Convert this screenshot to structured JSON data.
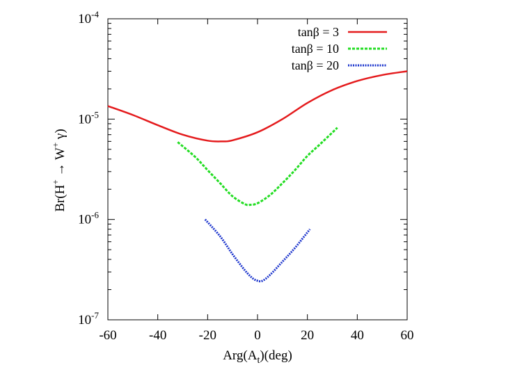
{
  "chart_data": {
    "type": "line",
    "xlabel": {
      "base": "Arg(A",
      "sub": "t",
      "tail": ")(deg)"
    },
    "ylabel": {
      "pre": "Br(H",
      "sup1": "+",
      "mid": " → W",
      "sup2": "+",
      "tail": " γ)"
    },
    "xlim": [
      -60,
      60
    ],
    "ylim": [
      1e-07,
      0.0001
    ],
    "yscale": "log",
    "grid": false,
    "legend_position": "top-right",
    "x_ticks": [
      {
        "value": -60,
        "label": "-60"
      },
      {
        "value": -40,
        "label": "-40"
      },
      {
        "value": -20,
        "label": "-20"
      },
      {
        "value": 0,
        "label": "0"
      },
      {
        "value": 20,
        "label": "20"
      },
      {
        "value": 40,
        "label": "40"
      },
      {
        "value": 60,
        "label": "60"
      }
    ],
    "y_ticks": [
      {
        "value": 1e-07,
        "base": "10",
        "exp": "-7"
      },
      {
        "value": 1e-06,
        "base": "10",
        "exp": "-6"
      },
      {
        "value": 1e-05,
        "base": "10",
        "exp": "-5"
      },
      {
        "value": 0.0001,
        "base": "10",
        "exp": "-4"
      }
    ],
    "series": [
      {
        "name": "tanβ = 3",
        "color": "#e41a1c",
        "style": "solid",
        "x": [
          -60,
          -50,
          -40,
          -30,
          -20,
          -14,
          -10,
          0,
          10,
          20,
          30,
          40,
          50,
          60
        ],
        "y": [
          1.35e-05,
          1.1e-05,
          8.7e-06,
          7e-06,
          6.1e-06,
          6e-06,
          6.15e-06,
          7.4e-06,
          1e-05,
          1.45e-05,
          1.95e-05,
          2.4e-05,
          2.75e-05,
          3e-05
        ]
      },
      {
        "name": "tanβ = 10",
        "color": "#22dd22",
        "style": "dashed",
        "x": [
          -32,
          -25,
          -20,
          -15,
          -10,
          -5,
          -3,
          0,
          5,
          10,
          15,
          20,
          25,
          32
        ],
        "y": [
          5.9e-06,
          4.2e-06,
          3.1e-06,
          2.3e-06,
          1.7e-06,
          1.42e-06,
          1.4e-06,
          1.45e-06,
          1.75e-06,
          2.3e-06,
          3.1e-06,
          4.3e-06,
          5.6e-06,
          8.2e-06
        ]
      },
      {
        "name": "tanβ = 20",
        "color": "#1a33cc",
        "style": "dotted",
        "x": [
          -21,
          -15,
          -10,
          -5,
          -2,
          0,
          2,
          5,
          10,
          15,
          21
        ],
        "y": [
          1e-06,
          6.8e-07,
          4.5e-07,
          3.1e-07,
          2.6e-07,
          2.45e-07,
          2.45e-07,
          2.8e-07,
          3.8e-07,
          5.2e-07,
          8e-07
        ]
      }
    ]
  }
}
